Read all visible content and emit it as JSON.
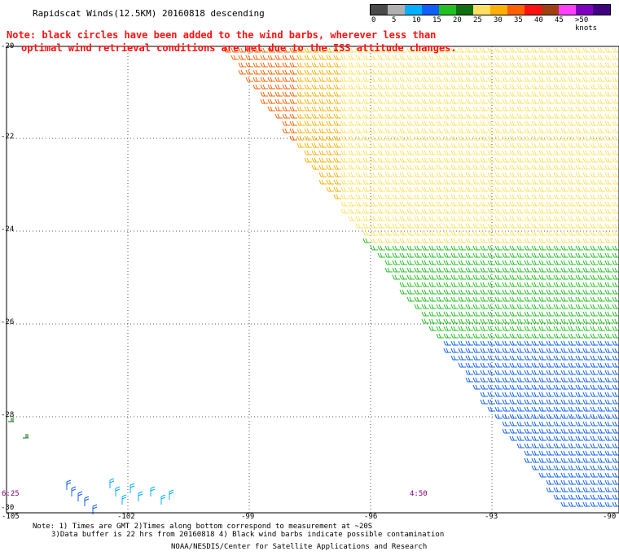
{
  "title": "Rapidscat Winds(12.5KM) 20160818 descending",
  "note_line1": "Note: black circles have been added to the wind barbs, wherever less than",
  "note_line2": "optimal wind retrieval conditions are met due to the ISS attitude changes.",
  "legend": {
    "colors": [
      "#4a4a4a",
      "#b0b0b0",
      "#00b0ff",
      "#1060ff",
      "#20c020",
      "#107010",
      "#ffe060",
      "#ffb000",
      "#ff6000",
      "#ff1010",
      "#a04010",
      "#ff40ff",
      "#8000c0",
      "#400080"
    ],
    "labels": [
      "0",
      "5",
      "10",
      "15",
      "20",
      "25",
      "30",
      "35",
      "40",
      "45",
      ">50 knots"
    ]
  },
  "axes": {
    "lat_labels": [
      "-20",
      "-22",
      "-24",
      "-26",
      "-28",
      "-30"
    ],
    "lon_labels": [
      "-105",
      "-102",
      "-99",
      "-96",
      "-93",
      "-90"
    ]
  },
  "times": {
    "left": "6:25",
    "right": "4:50"
  },
  "footnote_line1": "Note: 1) Times are GMT 2)Times along bottom correspond to measurement at ~20S",
  "footnote_line2": "3)Data buffer is 22 hrs from 20160818 4) Black wind barbs indicate possible contamination",
  "credit": "NOAA/NESDIS/Center for Satellite Applications and Research"
}
